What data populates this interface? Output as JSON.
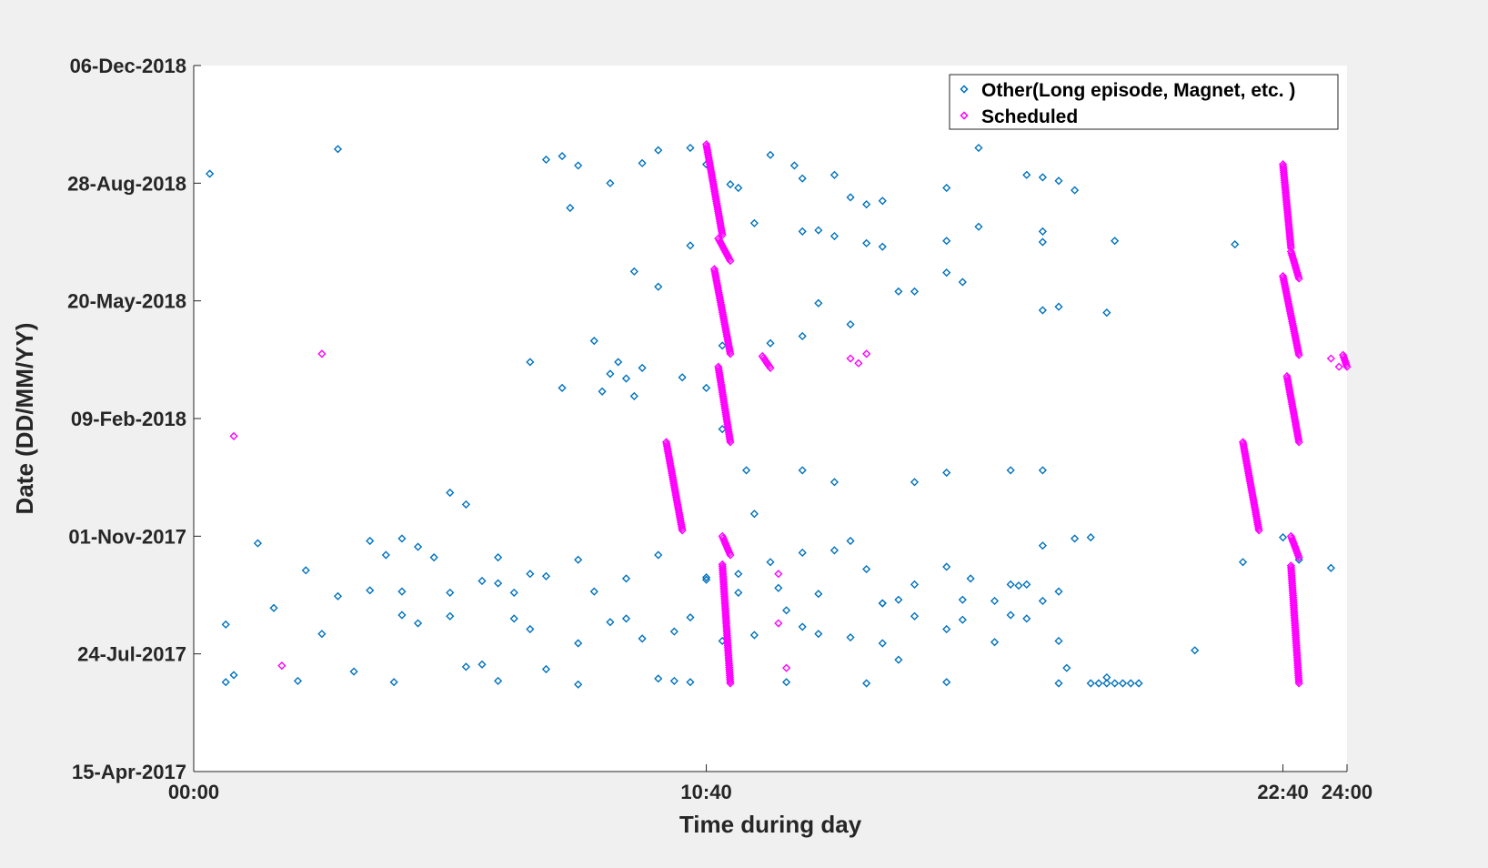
{
  "chart_data": {
    "type": "scatter",
    "xlabel": "Time during day",
    "ylabel": "Date (DD/MM/YY)",
    "xlim": [
      "00:00",
      "24:00"
    ],
    "ylim": [
      "15-Apr-2017",
      "06-Dec-2018"
    ],
    "x_ticks": [
      "00:00",
      "10:40",
      "22:40",
      "24:00"
    ],
    "y_ticks": [
      "15-Apr-2017",
      "24-Jul-2017",
      "01-Nov-2017",
      "09-Feb-2018",
      "20-May-2018",
      "28-Aug-2018",
      "06-Dec-2018"
    ],
    "legend_position": "top-right",
    "grid": false,
    "series": [
      {
        "name": "Other(Long episode, Magnet, etc. )",
        "color": "#0072bd",
        "marker": "diamond-open",
        "points": [
          [
            "00:20",
            "05-Sep-2018"
          ],
          [
            "03:00",
            "26-Sep-2018"
          ],
          [
            "07:20",
            "17-Sep-2018"
          ],
          [
            "07:40",
            "20-Sep-2018"
          ],
          [
            "08:00",
            "12-Sep-2018"
          ],
          [
            "09:20",
            "14-Sep-2018"
          ],
          [
            "09:40",
            "25-Sep-2018"
          ],
          [
            "10:20",
            "27-Sep-2018"
          ],
          [
            "08:40",
            "28-Aug-2018"
          ],
          [
            "07:50",
            "07-Aug-2018"
          ],
          [
            "10:40",
            "13-Sep-2018"
          ],
          [
            "11:10",
            "27-Aug-2018"
          ],
          [
            "11:20",
            "24-Aug-2018"
          ],
          [
            "12:00",
            "21-Sep-2018"
          ],
          [
            "12:30",
            "12-Sep-2018"
          ],
          [
            "12:40",
            "01-Sep-2018"
          ],
          [
            "13:20",
            "04-Sep-2018"
          ],
          [
            "13:40",
            "16-Aug-2018"
          ],
          [
            "14:00",
            "10-Aug-2018"
          ],
          [
            "14:20",
            "13-Aug-2018"
          ],
          [
            "15:40",
            "24-Aug-2018"
          ],
          [
            "16:20",
            "27-Sep-2018"
          ],
          [
            "17:20",
            "04-Sep-2018"
          ],
          [
            "17:40",
            "02-Sep-2018"
          ],
          [
            "18:00",
            "30-Aug-2018"
          ],
          [
            "18:20",
            "22-Aug-2018"
          ],
          [
            "10:20",
            "06-Jul-2018"
          ],
          [
            "11:40",
            "25-Jul-2018"
          ],
          [
            "12:40",
            "18-Jul-2018"
          ],
          [
            "13:00",
            "19-Jul-2018"
          ],
          [
            "13:20",
            "14-Jul-2018"
          ],
          [
            "14:00",
            "08-Jul-2018"
          ],
          [
            "14:20",
            "05-Jul-2018"
          ],
          [
            "15:40",
            "10-Jul-2018"
          ],
          [
            "16:20",
            "22-Jul-2018"
          ],
          [
            "17:40",
            "18-Jul-2018"
          ],
          [
            "13:00",
            "18-May-2018"
          ],
          [
            "13:40",
            "30-Apr-2018"
          ],
          [
            "14:40",
            "28-May-2018"
          ],
          [
            "15:00",
            "28-May-2018"
          ],
          [
            "16:00",
            "05-Jun-2018"
          ],
          [
            "17:40",
            "12-May-2018"
          ],
          [
            "18:00",
            "15-May-2018"
          ],
          [
            "19:00",
            "10-May-2018"
          ],
          [
            "09:10",
            "14-Jun-2018"
          ],
          [
            "09:40",
            "01-Jun-2018"
          ],
          [
            "11:00",
            "12-Apr-2018"
          ],
          [
            "12:00",
            "14-Apr-2018"
          ],
          [
            "12:40",
            "20-Apr-2018"
          ],
          [
            "15:40",
            "13-Jun-2018"
          ],
          [
            "17:40",
            "09-Jul-2018"
          ],
          [
            "19:10",
            "10-Jul-2018"
          ],
          [
            "21:40",
            "07-Jul-2018"
          ],
          [
            "08:50",
            "29-Mar-2018"
          ],
          [
            "09:00",
            "15-Mar-2018"
          ],
          [
            "08:30",
            "04-Mar-2018"
          ],
          [
            "07:00",
            "29-Mar-2018"
          ],
          [
            "07:40",
            "07-Mar-2018"
          ],
          [
            "08:20",
            "16-Apr-2018"
          ],
          [
            "08:40",
            "19-Mar-2018"
          ],
          [
            "09:10",
            "28-Feb-2018"
          ],
          [
            "09:20",
            "24-Mar-2018"
          ],
          [
            "10:10",
            "16-Mar-2018"
          ],
          [
            "10:40",
            "07-Mar-2018"
          ],
          [
            "11:00",
            "31-Jan-2018"
          ],
          [
            "11:30",
            "27-Dec-2017"
          ],
          [
            "11:40",
            "20-Nov-2017"
          ],
          [
            "12:40",
            "27-Dec-2017"
          ],
          [
            "13:20",
            "17-Dec-2017"
          ],
          [
            "15:00",
            "17-Dec-2017"
          ],
          [
            "15:40",
            "25-Dec-2017"
          ],
          [
            "17:00",
            "27-Dec-2017"
          ],
          [
            "17:40",
            "27-Dec-2017"
          ],
          [
            "05:20",
            "08-Dec-2017"
          ],
          [
            "05:40",
            "28-Nov-2017"
          ],
          [
            "04:20",
            "30-Oct-2017"
          ],
          [
            "04:40",
            "23-Oct-2017"
          ],
          [
            "04:00",
            "16-Oct-2017"
          ],
          [
            "06:20",
            "22-Sep-2017"
          ],
          [
            "07:00",
            "30-Sep-2017"
          ],
          [
            "06:00",
            "24-Sep-2017"
          ],
          [
            "06:40",
            "14-Sep-2017"
          ],
          [
            "07:20",
            "28-Sep-2017"
          ],
          [
            "08:20",
            "15-Sep-2017"
          ],
          [
            "09:00",
            "26-Sep-2017"
          ],
          [
            "10:40",
            "25-Sep-2017"
          ],
          [
            "11:20",
            "14-Sep-2017"
          ],
          [
            "12:10",
            "18-Sep-2017"
          ],
          [
            "13:00",
            "13-Sep-2017"
          ],
          [
            "14:20",
            "05-Sep-2017"
          ],
          [
            "15:00",
            "21-Sep-2017"
          ],
          [
            "16:10",
            "26-Sep-2017"
          ],
          [
            "17:10",
            "20-Sep-2017"
          ],
          [
            "17:40",
            "07-Sep-2017"
          ],
          [
            "18:40",
            "31-Oct-2017"
          ],
          [
            "03:00",
            "11-Sep-2017"
          ],
          [
            "03:40",
            "16-Sep-2017"
          ],
          [
            "04:20",
            "15-Sep-2017"
          ],
          [
            "05:20",
            "14-Sep-2017"
          ],
          [
            "01:20",
            "26-Oct-2017"
          ],
          [
            "02:20",
            "03-Oct-2017"
          ],
          [
            "03:40",
            "28-Oct-2017"
          ],
          [
            "05:00",
            "14-Oct-2017"
          ],
          [
            "06:20",
            "14-Oct-2017"
          ],
          [
            "08:00",
            "12-Oct-2017"
          ],
          [
            "09:40",
            "16-Oct-2017"
          ],
          [
            "10:40",
            "27-Sep-2017"
          ],
          [
            "11:20",
            "30-Sep-2017"
          ],
          [
            "12:00",
            "10-Oct-2017"
          ],
          [
            "12:40",
            "18-Oct-2017"
          ],
          [
            "13:20",
            "20-Oct-2017"
          ],
          [
            "13:40",
            "28-Oct-2017"
          ],
          [
            "14:00",
            "04-Oct-2017"
          ],
          [
            "14:20",
            "05-Sep-2017"
          ],
          [
            "14:40",
            "08-Sep-2017"
          ],
          [
            "15:40",
            "06-Oct-2017"
          ],
          [
            "16:00",
            "08-Sep-2017"
          ],
          [
            "16:40",
            "07-Sep-2017"
          ],
          [
            "17:00",
            "21-Sep-2017"
          ],
          [
            "17:20",
            "21-Sep-2017"
          ],
          [
            "17:40",
            "24-Oct-2017"
          ],
          [
            "18:00",
            "15-Sep-2017"
          ],
          [
            "18:20",
            "30-Oct-2017"
          ],
          [
            "20:50",
            "27-Jul-2017"
          ],
          [
            "21:50",
            "10-Oct-2017"
          ],
          [
            "22:40",
            "31-Oct-2017"
          ],
          [
            "23:00",
            "12-Oct-2017"
          ],
          [
            "23:40",
            "05-Oct-2017"
          ],
          [
            "00:40",
            "18-Aug-2017"
          ],
          [
            "00:50",
            "06-Jul-2017"
          ],
          [
            "01:40",
            "01-Sep-2017"
          ],
          [
            "02:40",
            "10-Aug-2017"
          ],
          [
            "03:20",
            "09-Jul-2017"
          ],
          [
            "04:20",
            "26-Aug-2017"
          ],
          [
            "04:40",
            "19-Aug-2017"
          ],
          [
            "05:20",
            "25-Aug-2017"
          ],
          [
            "05:40",
            "13-Jul-2017"
          ],
          [
            "06:00",
            "15-Jul-2017"
          ],
          [
            "06:40",
            "23-Aug-2017"
          ],
          [
            "07:00",
            "14-Aug-2017"
          ],
          [
            "07:20",
            "11-Jul-2017"
          ],
          [
            "08:00",
            "02-Aug-2017"
          ],
          [
            "08:40",
            "20-Aug-2017"
          ],
          [
            "09:00",
            "23-Aug-2017"
          ],
          [
            "09:20",
            "06-Aug-2017"
          ],
          [
            "09:40",
            "03-Jul-2017"
          ],
          [
            "10:20",
            "24-Aug-2017"
          ],
          [
            "10:00",
            "12-Aug-2017"
          ],
          [
            "11:00",
            "04-Aug-2017"
          ],
          [
            "11:40",
            "09-Aug-2017"
          ],
          [
            "12:20",
            "30-Aug-2017"
          ],
          [
            "12:40",
            "16-Aug-2017"
          ],
          [
            "13:00",
            "10-Aug-2017"
          ],
          [
            "13:40",
            "07-Aug-2017"
          ],
          [
            "14:20",
            "02-Aug-2017"
          ],
          [
            "14:40",
            "19-Jul-2017"
          ],
          [
            "15:00",
            "25-Aug-2017"
          ],
          [
            "15:40",
            "14-Aug-2017"
          ],
          [
            "16:00",
            "22-Aug-2017"
          ],
          [
            "16:40",
            "03-Aug-2017"
          ],
          [
            "17:00",
            "26-Aug-2017"
          ],
          [
            "17:20",
            "23-Aug-2017"
          ],
          [
            "18:00",
            "04-Aug-2017"
          ],
          [
            "18:10",
            "12-Jul-2017"
          ],
          [
            "19:00",
            "04-Jul-2017"
          ],
          [
            "00:40",
            "30-Jun-2017"
          ],
          [
            "02:10",
            "01-Jul-2017"
          ],
          [
            "04:10",
            "30-Jun-2017"
          ],
          [
            "06:20",
            "01-Jul-2017"
          ],
          [
            "08:00",
            "28-Jun-2017"
          ],
          [
            "10:00",
            "01-Jul-2017"
          ],
          [
            "10:20",
            "30-Jun-2017"
          ],
          [
            "12:20",
            "30-Jun-2017"
          ],
          [
            "14:00",
            "29-Jun-2017"
          ],
          [
            "15:40",
            "30-Jun-2017"
          ],
          [
            "18:00",
            "29-Jun-2017"
          ],
          [
            "18:40",
            "29-Jun-2017"
          ],
          [
            "18:50",
            "29-Jun-2017"
          ],
          [
            "19:00",
            "29-Jun-2017"
          ],
          [
            "19:10",
            "29-Jun-2017"
          ],
          [
            "19:20",
            "29-Jun-2017"
          ],
          [
            "19:30",
            "29-Jun-2017"
          ],
          [
            "19:40",
            "29-Jun-2017"
          ]
        ]
      },
      {
        "name": "Scheduled",
        "color": "#ff00ff",
        "marker": "diamond-open",
        "points": [
          [
            "00:50",
            "25-Jan-2018"
          ],
          [
            "02:40",
            "05-Apr-2018"
          ],
          [
            "01:50",
            "14-Jul-2017"
          ],
          [
            "14:00",
            "05-Apr-2018"
          ],
          [
            "12:10",
            "30-Sep-2017"
          ],
          [
            "12:10",
            "19-Aug-2017"
          ],
          [
            "12:20",
            "12-Jul-2017"
          ],
          [
            "13:40",
            "01-Apr-2018"
          ],
          [
            "13:50",
            "28-Mar-2018"
          ],
          [
            "23:40",
            "01-Apr-2018"
          ],
          [
            "23:50",
            "25-Mar-2018"
          ]
        ],
        "line_segments": [
          {
            "x_start": "10:40",
            "date_start": "30-Sep-2018",
            "x_end": "11:00",
            "date_end": "15-Jul-2018"
          },
          {
            "x_start": "10:55",
            "date_start": "12-Jul-2018",
            "x_end": "11:10",
            "date_end": "23-Jun-2018"
          },
          {
            "x_start": "10:50",
            "date_start": "16-Jun-2018",
            "x_end": "11:10",
            "date_end": "05-Apr-2018"
          },
          {
            "x_start": "10:55",
            "date_start": "25-Mar-2018",
            "x_end": "11:10",
            "date_end": "20-Jan-2018"
          },
          {
            "x_start": "09:50",
            "date_start": "20-Jan-2018",
            "x_end": "10:10",
            "date_end": "06-Nov-2017"
          },
          {
            "x_start": "11:00",
            "date_start": "01-Nov-2017",
            "x_end": "11:10",
            "date_end": "16-Oct-2017"
          },
          {
            "x_start": "11:00",
            "date_start": "08-Oct-2017",
            "x_end": "11:10",
            "date_end": "29-Jun-2017"
          },
          {
            "x_start": "11:50",
            "date_start": "03-Apr-2018",
            "x_end": "12:00",
            "date_end": "24-Mar-2018"
          },
          {
            "x_start": "22:40",
            "date_start": "13-Sep-2018",
            "x_end": "22:50",
            "date_end": "04-Jul-2018"
          },
          {
            "x_start": "22:50",
            "date_start": "01-Jul-2018",
            "x_end": "23:00",
            "date_end": "08-Jun-2018"
          },
          {
            "x_start": "22:40",
            "date_start": "10-Jun-2018",
            "x_end": "23:00",
            "date_end": "04-Apr-2018"
          },
          {
            "x_start": "22:45",
            "date_start": "17-Mar-2018",
            "x_end": "23:00",
            "date_end": "20-Jan-2018"
          },
          {
            "x_start": "21:50",
            "date_start": "20-Jan-2018",
            "x_end": "22:10",
            "date_end": "06-Nov-2017"
          },
          {
            "x_start": "22:50",
            "date_start": "01-Nov-2017",
            "x_end": "23:00",
            "date_end": "14-Oct-2017"
          },
          {
            "x_start": "22:50",
            "date_start": "07-Oct-2017",
            "x_end": "23:00",
            "date_end": "29-Jun-2017"
          },
          {
            "x_start": "23:55",
            "date_start": "04-Apr-2018",
            "x_end": "24:00",
            "date_end": "25-Mar-2018"
          }
        ]
      }
    ]
  }
}
